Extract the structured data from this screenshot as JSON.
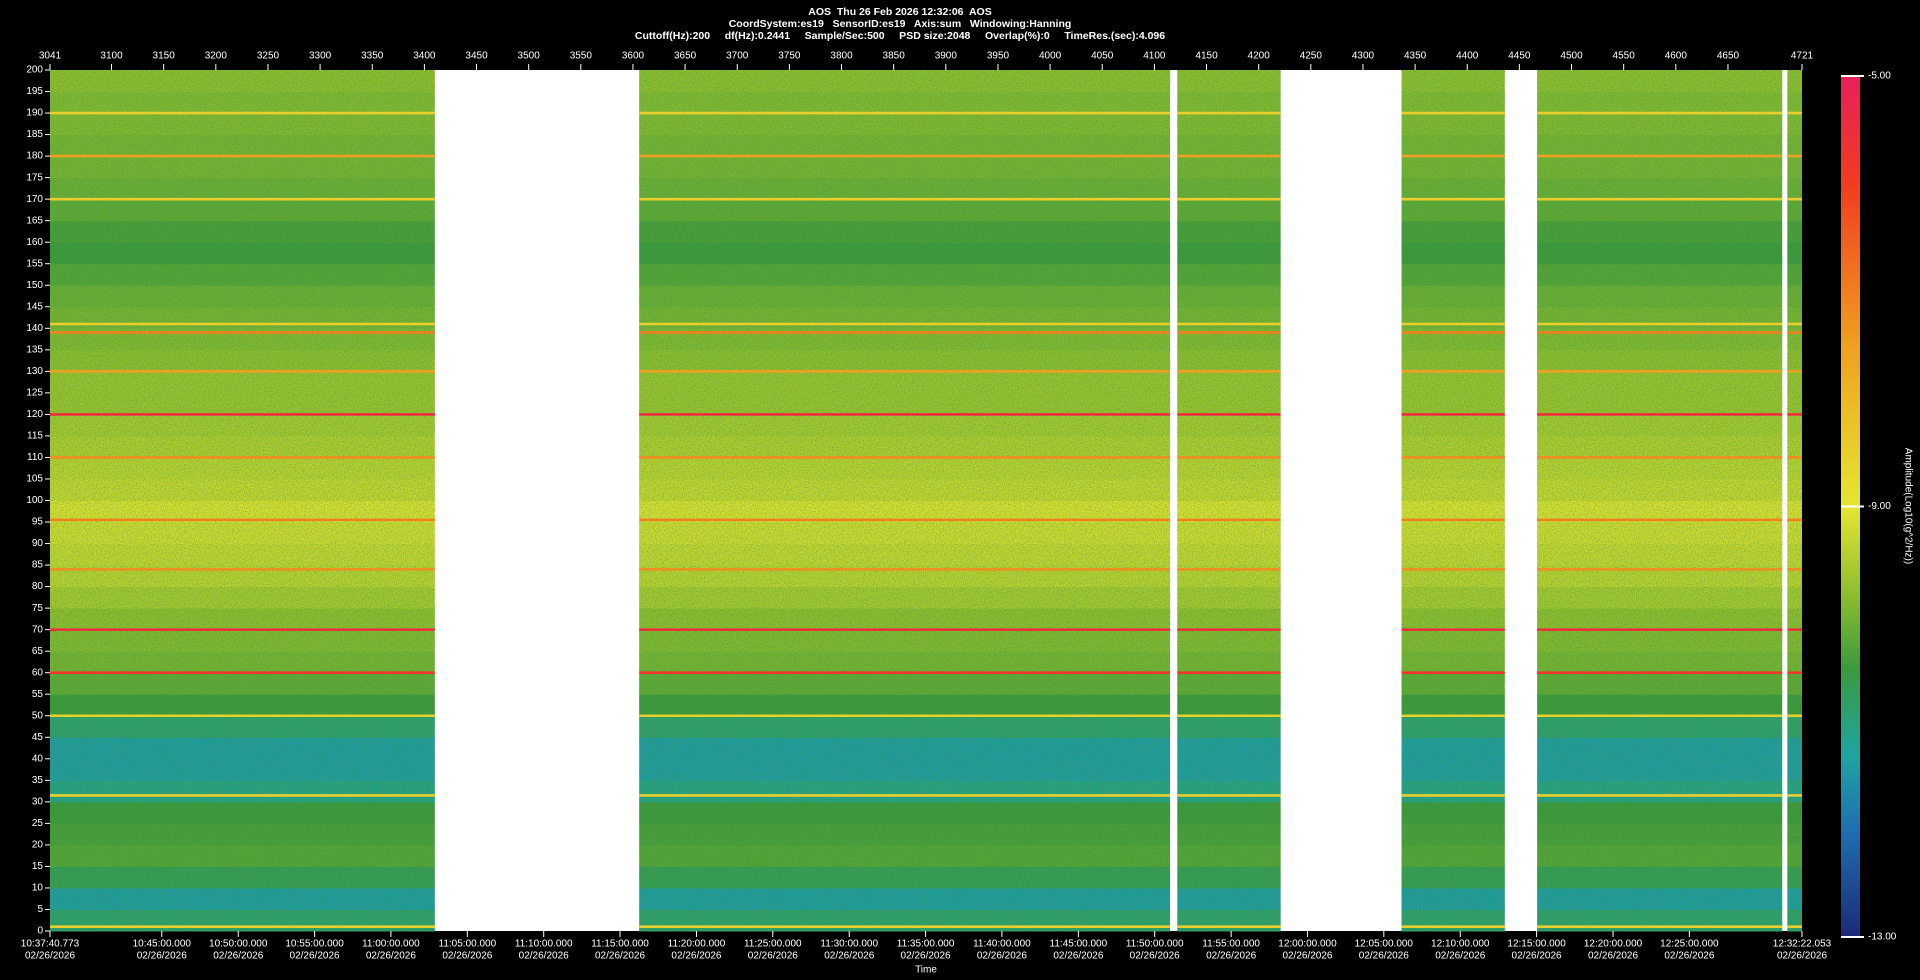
{
  "chart_data": {
    "type": "spectrogram",
    "title": "AOS  Thu 26 Feb 2026 12:32:06  AOS",
    "subtitle": "CoordSystem:es19   SensorID:es19   Axis:sum   Windowing:Hanning",
    "info": "Cuttoff(Hz):200     df(Hz):0.2441     Sample/Sec:500     PSD size:2048     Overlap(%):0     TimeRes.(sec):4.096",
    "x_label": "Time",
    "colorbar_label": "Amplitude(Log10(g^2/Hz))",
    "xlim": [
      3041,
      4721
    ],
    "xticks": [
      3041,
      3100,
      3150,
      3200,
      3250,
      3300,
      3350,
      3400,
      3450,
      3500,
      3550,
      3600,
      3650,
      3700,
      3750,
      3800,
      3850,
      3900,
      3950,
      4000,
      4050,
      4100,
      4150,
      4200,
      4250,
      4300,
      4350,
      4400,
      4450,
      4500,
      4550,
      4600,
      4650,
      4721
    ],
    "time_ticks": [
      {
        "value": 3041,
        "label": "10:37:40.773",
        "date": "02/26/2026"
      },
      {
        "value": 3148.2,
        "label": "10:45:00.000",
        "date": "02/26/2026"
      },
      {
        "value": 3221.5,
        "label": "10:50:00.000",
        "date": "02/26/2026"
      },
      {
        "value": 3294.7,
        "label": "10:55:00.000",
        "date": "02/26/2026"
      },
      {
        "value": 3367.9,
        "label": "11:00:00.000",
        "date": "02/26/2026"
      },
      {
        "value": 3441.2,
        "label": "11:05:00.000",
        "date": "02/26/2026"
      },
      {
        "value": 3514.4,
        "label": "11:10:00.000",
        "date": "02/26/2026"
      },
      {
        "value": 3587.6,
        "label": "11:15:00.000",
        "date": "02/26/2026"
      },
      {
        "value": 3660.9,
        "label": "11:20:00.000",
        "date": "02/26/2026"
      },
      {
        "value": 3734.1,
        "label": "11:25:00.000",
        "date": "02/26/2026"
      },
      {
        "value": 3807.4,
        "label": "11:30:00.000",
        "date": "02/26/2026"
      },
      {
        "value": 3880.6,
        "label": "11:35:00.000",
        "date": "02/26/2026"
      },
      {
        "value": 3953.8,
        "label": "11:40:00.000",
        "date": "02/26/2026"
      },
      {
        "value": 4027.1,
        "label": "11:45:00.000",
        "date": "02/26/2026"
      },
      {
        "value": 4100.3,
        "label": "11:50:00.000",
        "date": "02/26/2026"
      },
      {
        "value": 4173.6,
        "label": "11:55:00.000",
        "date": "02/26/2026"
      },
      {
        "value": 4246.8,
        "label": "12:00:00.000",
        "date": "02/26/2026"
      },
      {
        "value": 4320.0,
        "label": "12:05:00.000",
        "date": "02/26/2026"
      },
      {
        "value": 4393.3,
        "label": "12:10:00.000",
        "date": "02/26/2026"
      },
      {
        "value": 4466.5,
        "label": "12:15:00.000",
        "date": "02/26/2026"
      },
      {
        "value": 4539.8,
        "label": "12:20:00.000",
        "date": "02/26/2026"
      },
      {
        "value": 4613.0,
        "label": "12:25:00.000",
        "date": "02/26/2026"
      },
      {
        "value": 4721,
        "label": "12:32:22.053",
        "date": "02/26/2026"
      }
    ],
    "ylim": [
      0,
      200
    ],
    "yticks": [
      0,
      5,
      10,
      15,
      20,
      25,
      30,
      35,
      40,
      45,
      50,
      55,
      60,
      65,
      70,
      75,
      80,
      85,
      90,
      95,
      100,
      105,
      110,
      115,
      120,
      125,
      130,
      135,
      140,
      145,
      150,
      155,
      160,
      165,
      170,
      175,
      180,
      185,
      190,
      195,
      200
    ],
    "segments": [
      [
        3041,
        3410
      ],
      [
        3606,
        4115
      ],
      [
        4122,
        4221
      ],
      [
        4337,
        4436
      ],
      [
        4467,
        4702
      ],
      [
        4707,
        4721
      ]
    ],
    "frequency_bins": [
      0,
      5,
      10,
      15,
      20,
      25,
      30,
      35,
      40,
      45,
      50,
      55,
      60,
      65,
      70,
      75,
      80,
      85,
      90,
      95,
      100,
      105,
      110,
      115,
      120,
      125,
      130,
      135,
      140,
      145,
      150,
      155,
      160,
      165,
      170,
      175,
      180,
      185,
      190,
      195,
      200
    ],
    "amplitude": [
      -10.9,
      -11.4,
      -10.7,
      -10.3,
      -10.4,
      -10.5,
      -11.1,
      -11.4,
      -11.4,
      -10.9,
      -10.5,
      -10.2,
      -10.0,
      -9.9,
      -9.8,
      -9.6,
      -9.4,
      -9.3,
      -9.2,
      -9.1,
      -9.3,
      -9.4,
      -9.5,
      -9.6,
      -9.7,
      -9.7,
      -9.8,
      -9.9,
      -10.0,
      -10.1,
      -10.3,
      -10.5,
      -10.4,
      -10.2,
      -10.1,
      -10.0,
      -10.0,
      -9.9,
      -9.9,
      -9.8
    ],
    "lines": {
      "frequency": [
        1,
        31.5,
        50,
        60,
        70,
        84,
        95.5,
        110,
        120,
        130,
        139,
        141,
        170,
        180,
        190
      ],
      "amplitude": [
        -8.5,
        -8.5,
        -8.5,
        -5.8,
        -5.5,
        -7.2,
        -7.0,
        -7.2,
        -5.5,
        -7.5,
        -7.0,
        -8.5,
        -8.5,
        -7.5,
        -8.5
      ]
    },
    "colorbar_lim": [
      -13,
      -5
    ],
    "colorbar_ticks": [
      {
        "value": -5,
        "label": "-5.00"
      },
      {
        "value": -9,
        "label": "-9.00"
      },
      {
        "value": -13,
        "label": "-13.00"
      }
    ],
    "colormap": [
      {
        "value": -13,
        "color": "#1b2a7a"
      },
      {
        "value": -12,
        "color": "#1f6fb0"
      },
      {
        "value": -11.3,
        "color": "#1fa5a0"
      },
      {
        "value": -10.5,
        "color": "#3c9a3c"
      },
      {
        "value": -9.8,
        "color": "#8fbf2f"
      },
      {
        "value": -9,
        "color": "#e6e632"
      },
      {
        "value": -7.5,
        "color": "#f0a020"
      },
      {
        "value": -6,
        "color": "#f03c20"
      },
      {
        "value": -5,
        "color": "#e8205a"
      }
    ]
  }
}
